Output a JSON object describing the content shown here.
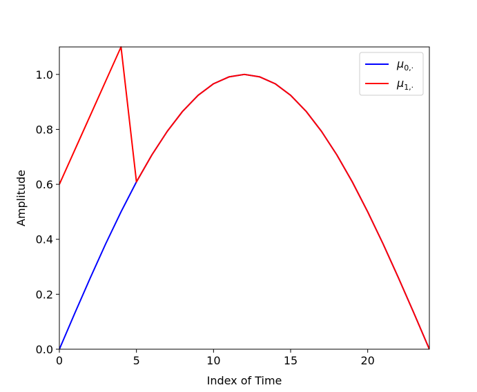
{
  "chart_data": {
    "type": "line",
    "title": "",
    "xlabel": "Index of Time",
    "ylabel": "Amplitude",
    "xlim": [
      0,
      24
    ],
    "ylim": [
      0,
      1.1
    ],
    "grid": false,
    "legend_position": "top-right",
    "x_ticks": [
      0,
      5,
      10,
      15,
      20
    ],
    "x_tick_labels": [
      "0",
      "5",
      "10",
      "15",
      "20"
    ],
    "y_ticks": [
      0.0,
      0.2,
      0.4,
      0.6,
      0.8,
      1.0
    ],
    "y_tick_labels": [
      "0.0",
      "0.2",
      "0.4",
      "0.6",
      "0.8",
      "1.0"
    ],
    "x": [
      0,
      1,
      2,
      3,
      4,
      5,
      6,
      7,
      8,
      9,
      10,
      11,
      12,
      13,
      14,
      15,
      16,
      17,
      18,
      19,
      20,
      21,
      22,
      23,
      24
    ],
    "series": [
      {
        "name_symbol": "μ",
        "name_subscript": "0,·",
        "color": "#0000ff",
        "values": [
          0.0,
          0.131,
          0.259,
          0.383,
          0.5,
          0.609,
          0.707,
          0.793,
          0.866,
          0.924,
          0.966,
          0.991,
          1.0,
          0.991,
          0.966,
          0.924,
          0.866,
          0.793,
          0.707,
          0.609,
          0.5,
          0.383,
          0.259,
          0.131,
          0.0
        ]
      },
      {
        "name_symbol": "μ",
        "name_subscript": "1,·",
        "color": "#ff0000",
        "values": [
          0.6,
          0.725,
          0.85,
          0.975,
          1.1,
          0.609,
          0.707,
          0.793,
          0.866,
          0.924,
          0.966,
          0.991,
          1.0,
          0.991,
          0.966,
          0.924,
          0.866,
          0.793,
          0.707,
          0.609,
          0.5,
          0.383,
          0.259,
          0.131,
          0.0
        ]
      }
    ]
  }
}
